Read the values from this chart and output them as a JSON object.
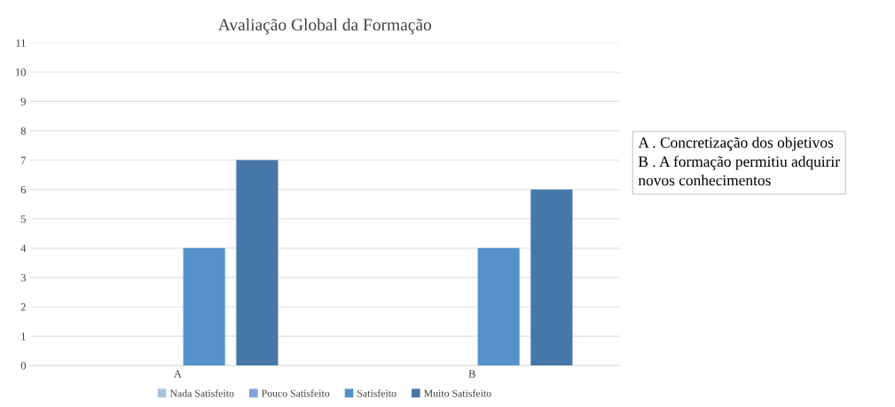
{
  "chart_data": {
    "type": "bar",
    "title": "Avaliação Global da Formação",
    "categories": [
      "A",
      "B"
    ],
    "series": [
      {
        "name": "Nada Satisfeito",
        "color": "#a9c2e4",
        "values": [
          0,
          0
        ]
      },
      {
        "name": "Pouco Satisfeito",
        "color": "#7ea3d8",
        "values": [
          0,
          0
        ]
      },
      {
        "name": "Satisfeito",
        "color": "#5592cb",
        "values": [
          4,
          4
        ]
      },
      {
        "name": "Muito Satisfeito",
        "color": "#4677a8",
        "values": [
          7,
          6
        ]
      }
    ],
    "ylim": [
      0,
      11
    ],
    "yticks": [
      0,
      1,
      2,
      3,
      4,
      5,
      6,
      7,
      8,
      9,
      10,
      11
    ],
    "grid": "y",
    "legend": "bottom",
    "annotations": [
      "A . Concretização dos objetivos\nB . A formação permitiu adquirir\nnovos conhecimentos"
    ]
  }
}
